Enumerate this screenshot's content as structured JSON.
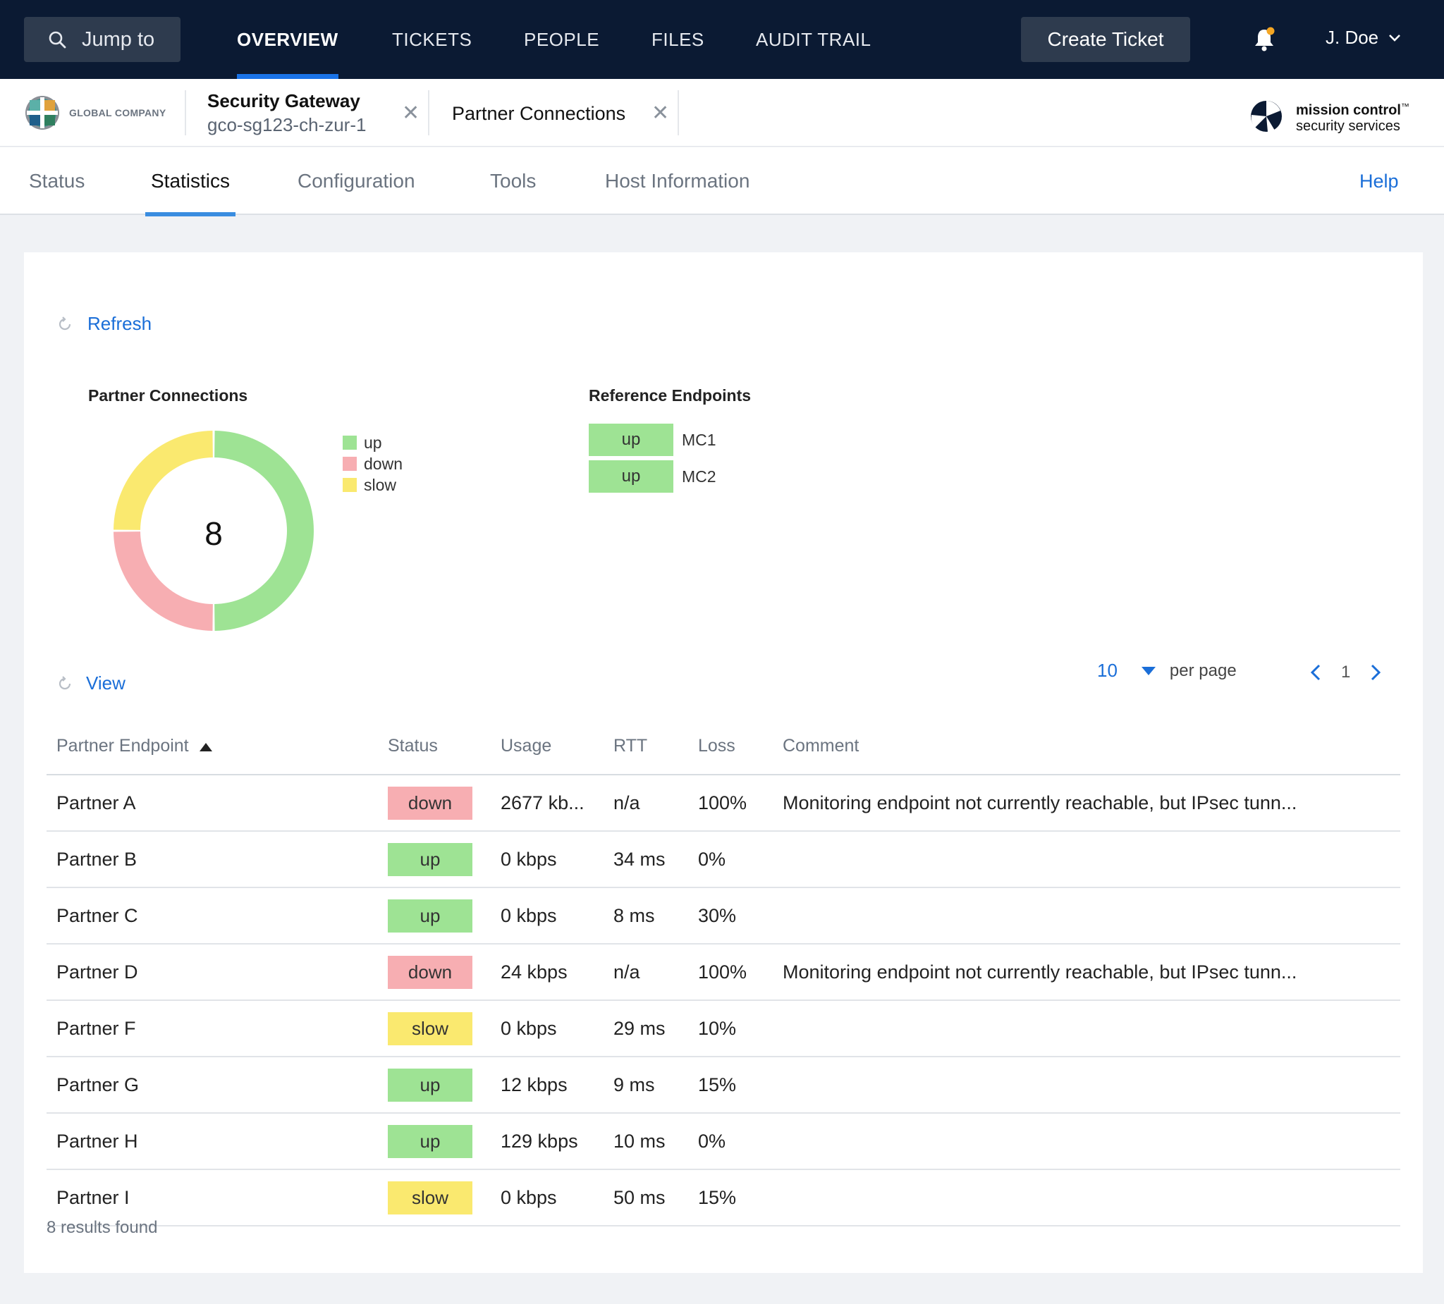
{
  "colors": {
    "up": "#9ee394",
    "down": "#f7aeb2",
    "slow": "#fae96f",
    "nav_bg": "#0b1a33",
    "accent": "#1a6ed8"
  },
  "topnav": {
    "jump_label": "Jump to",
    "links": [
      "OVERVIEW",
      "TICKETS",
      "PEOPLE",
      "FILES",
      "AUDIT TRAIL"
    ],
    "active_link": "OVERVIEW",
    "create_label": "Create Ticket",
    "user_name": "J. Doe",
    "icons": [
      "search-icon",
      "bell-icon",
      "chevron-down-icon"
    ]
  },
  "context": {
    "company_name": "GLOBAL COMPANY",
    "tab1_title": "Security Gateway",
    "tab1_subtitle": "gco-sg123-ch-zur-1",
    "tab2_title": "Partner Connections",
    "close_glyph": "✕",
    "brand_line1": "mission control",
    "brand_tm": "™",
    "brand_line2": "security services"
  },
  "subtabs": {
    "items": [
      "Status",
      "Statistics",
      "Configuration",
      "Tools",
      "Host Information"
    ],
    "active": "Statistics",
    "help_label": "Help"
  },
  "stats": {
    "refresh_label": "Refresh",
    "partner_title": "Partner Connections",
    "total": "8",
    "legend": [
      "up",
      "down",
      "slow"
    ],
    "ref_title": "Reference Endpoints",
    "ref_endpoints": [
      {
        "status": "up",
        "name": "MC1"
      },
      {
        "status": "up",
        "name": "MC2"
      }
    ]
  },
  "chart_data": {
    "type": "pie",
    "variant": "donut",
    "categories": [
      "up",
      "down",
      "slow"
    ],
    "values": [
      4,
      2,
      2
    ],
    "center_label": "8",
    "title": "Partner Connections",
    "legend_position": "right"
  },
  "table": {
    "view_label": "View",
    "per_page_value": "10",
    "per_page_label": "per page",
    "current_page": "1",
    "columns": [
      "Partner Endpoint",
      "Status",
      "Usage",
      "RTT",
      "Loss",
      "Comment"
    ],
    "sort_column": "Partner Endpoint",
    "sort_direction": "ascending",
    "rows": [
      {
        "name": "Partner A",
        "status": "down",
        "usage": "2677 kb...",
        "rtt": "n/a",
        "loss": "100%",
        "comment": "Monitoring endpoint not currently reachable, but IPsec tunn..."
      },
      {
        "name": "Partner B",
        "status": "up",
        "usage": "0 kbps",
        "rtt": "34 ms",
        "loss": "0%",
        "comment": ""
      },
      {
        "name": "Partner C",
        "status": "up",
        "usage": "0 kbps",
        "rtt": "8 ms",
        "loss": "30%",
        "comment": ""
      },
      {
        "name": "Partner D",
        "status": "down",
        "usage": "24 kbps",
        "rtt": "n/a",
        "loss": "100%",
        "comment": "Monitoring endpoint not currently reachable, but IPsec tunn..."
      },
      {
        "name": "Partner F",
        "status": "slow",
        "usage": "0 kbps",
        "rtt": "29 ms",
        "loss": "10%",
        "comment": ""
      },
      {
        "name": "Partner G",
        "status": "up",
        "usage": "12 kbps",
        "rtt": "9 ms",
        "loss": "15%",
        "comment": ""
      },
      {
        "name": "Partner H",
        "status": "up",
        "usage": "129 kbps",
        "rtt": "10 ms",
        "loss": "0%",
        "comment": ""
      },
      {
        "name": "Partner I",
        "status": "slow",
        "usage": "0 kbps",
        "rtt": "50 ms",
        "loss": "15%",
        "comment": ""
      }
    ],
    "results_text": "8 results found"
  }
}
